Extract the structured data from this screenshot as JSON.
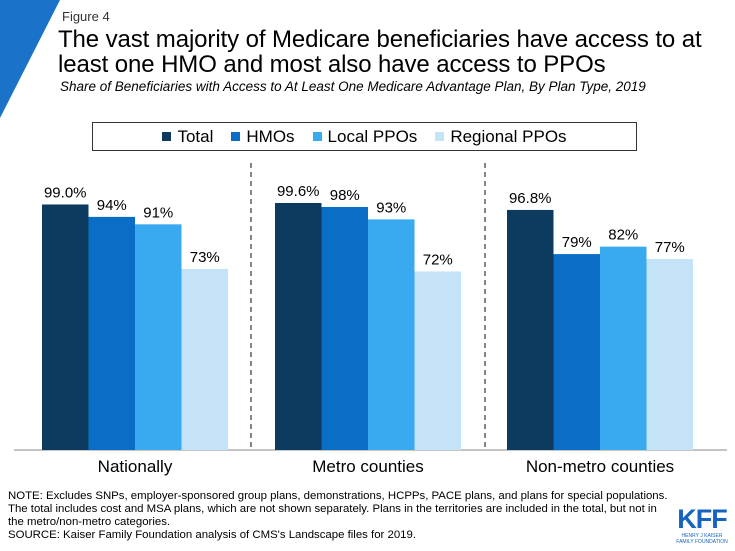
{
  "header": {
    "figure_label": "Figure 4",
    "title": "The vast majority of Medicare beneficiaries have access to at least one HMO and most also have access to PPOs",
    "subtitle": "Share of Beneficiaries with Access to At Least One Medicare Advantage Plan, By Plan Type, 2019"
  },
  "colors": {
    "accent": "#1a73c9",
    "total": "#0d3a5f",
    "hmos": "#0a6ec6",
    "local_ppos": "#3aaaf0",
    "regional_ppos": "#c4e3f7"
  },
  "chart_data": {
    "type": "bar",
    "title": "",
    "xlabel": "",
    "ylabel": "",
    "ylim": [
      0,
      100
    ],
    "grid": false,
    "legend_position": "top",
    "categories": [
      "Nationally",
      "Metro counties",
      "Non-metro counties"
    ],
    "series": [
      {
        "name": "Total",
        "values": [
          99.0,
          99.6,
          96.8
        ],
        "labels": [
          "99.0%",
          "99.6%",
          "96.8%"
        ]
      },
      {
        "name": "HMOs",
        "values": [
          94,
          98,
          79
        ],
        "labels": [
          "94%",
          "98%",
          "79%"
        ]
      },
      {
        "name": "Local PPOs",
        "values": [
          91,
          93,
          82
        ],
        "labels": [
          "91%",
          "93%",
          "82%"
        ]
      },
      {
        "name": "Regional PPOs",
        "values": [
          73,
          72,
          77
        ],
        "labels": [
          "73%",
          "72%",
          "77%"
        ]
      }
    ]
  },
  "footer": {
    "note": "NOTE: Excludes SNPs, employer-sponsored group plans, demonstrations, HCPPs, PACE plans, and plans for special populations. The total includes cost and MSA plans, which are not shown separately.  Plans in the territories are included in the total, but not in the metro/non-metro  categories.",
    "source": "SOURCE:  Kaiser Family Foundation analysis of CMS's Landscape files for 2019.",
    "logo_text": "KFF",
    "logo_subtext": "HENRY J KAISER FAMILY FOUNDATION"
  }
}
